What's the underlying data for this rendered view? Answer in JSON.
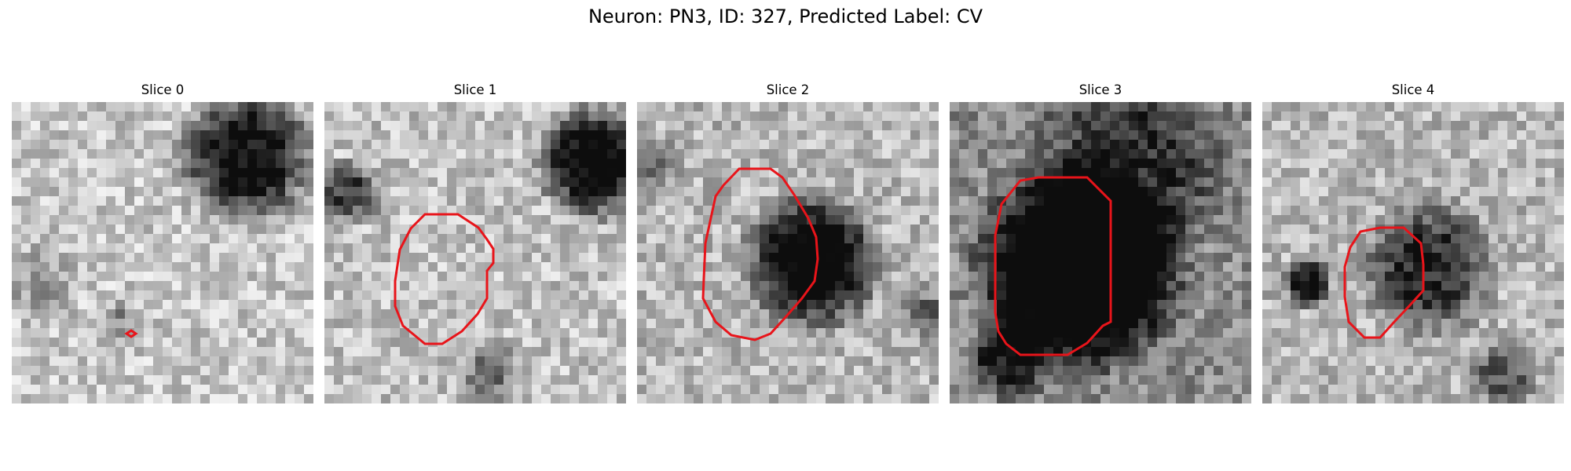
{
  "figure": {
    "title": "Neuron: PN3, ID: 327, Predicted Label: CV",
    "panels": [
      {
        "title": "Slice 0",
        "image": "grayscale-em-slice",
        "contour_color": "#e8141a"
      },
      {
        "title": "Slice 1",
        "image": "grayscale-em-slice",
        "contour_color": "#e8141a"
      },
      {
        "title": "Slice 2",
        "image": "grayscale-em-slice",
        "contour_color": "#e8141a"
      },
      {
        "title": "Slice 3",
        "image": "grayscale-em-slice",
        "contour_color": "#e8141a"
      },
      {
        "title": "Slice 4",
        "image": "grayscale-em-slice",
        "contour_color": "#e8141a"
      }
    ]
  }
}
